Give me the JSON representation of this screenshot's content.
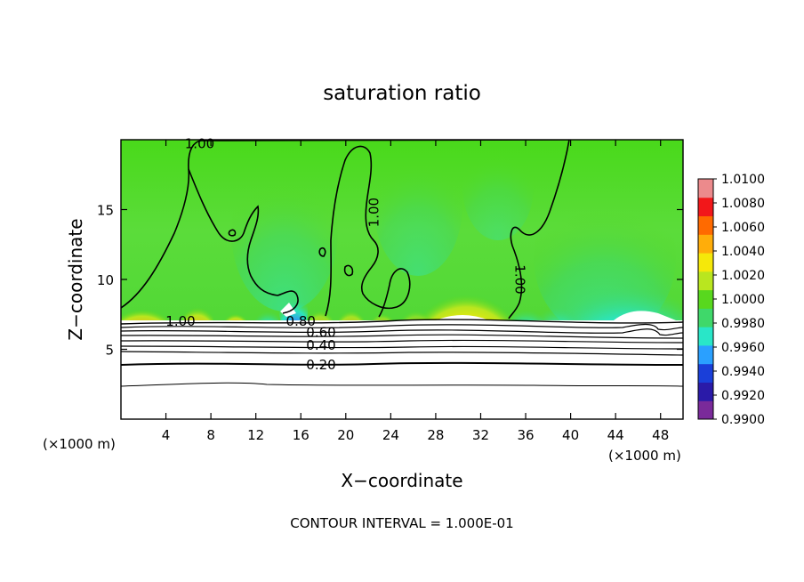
{
  "chart_data": {
    "type": "contour",
    "title": "saturation ratio",
    "xlabel": "X−coordinate",
    "ylabel": "Z−coordinate",
    "x_unit_left": "(×1000 m)",
    "x_unit_right": "(×1000 m)",
    "xlim": [
      0,
      50
    ],
    "ylim": [
      0,
      20
    ],
    "x_ticks": [
      4,
      8,
      12,
      16,
      20,
      24,
      28,
      32,
      36,
      40,
      44,
      48
    ],
    "y_ticks": [
      5,
      10,
      15
    ],
    "x_tick_labels": [
      "4",
      "8",
      "12",
      "16",
      "20",
      "24",
      "28",
      "32",
      "36",
      "40",
      "44",
      "48"
    ],
    "y_tick_labels": [
      "5",
      "10",
      "15"
    ],
    "colorbar": {
      "min": 0.99,
      "max": 1.01,
      "labels": [
        "1.0100",
        "1.0080",
        "1.0060",
        "1.0040",
        "1.0020",
        "1.0000",
        "0.9980",
        "0.9960",
        "0.9940",
        "0.9920",
        "0.9900"
      ],
      "colors": [
        "#7a2a9a",
        "#2a1aa8",
        "#1a3fd9",
        "#2aa0ff",
        "#29e6c8",
        "#3fd86a",
        "#58d81e",
        "#b9e61f",
        "#f5e80a",
        "#ffad0a",
        "#ff6a00",
        "#f2171a",
        "#ec8a8c"
      ]
    },
    "contour_labels": [
      {
        "text": "1.00",
        "x": 7.0,
        "z": 19.7
      },
      {
        "text": "1.00",
        "x": 22.5,
        "z": 14.8
      },
      {
        "text": "1.00",
        "x": 35.5,
        "z": 10.0
      },
      {
        "text": "1.00",
        "x": 5.3,
        "z": 7.0
      },
      {
        "text": "0.80",
        "x": 16.0,
        "z": 7.0
      },
      {
        "text": "0.60",
        "x": 17.8,
        "z": 6.2
      },
      {
        "text": "0.40",
        "x": 17.8,
        "z": 5.3
      },
      {
        "text": "0.20",
        "x": 17.8,
        "z": 3.9
      }
    ],
    "contour_interval": "CONTOUR INTERVAL =  1.000E-01"
  }
}
